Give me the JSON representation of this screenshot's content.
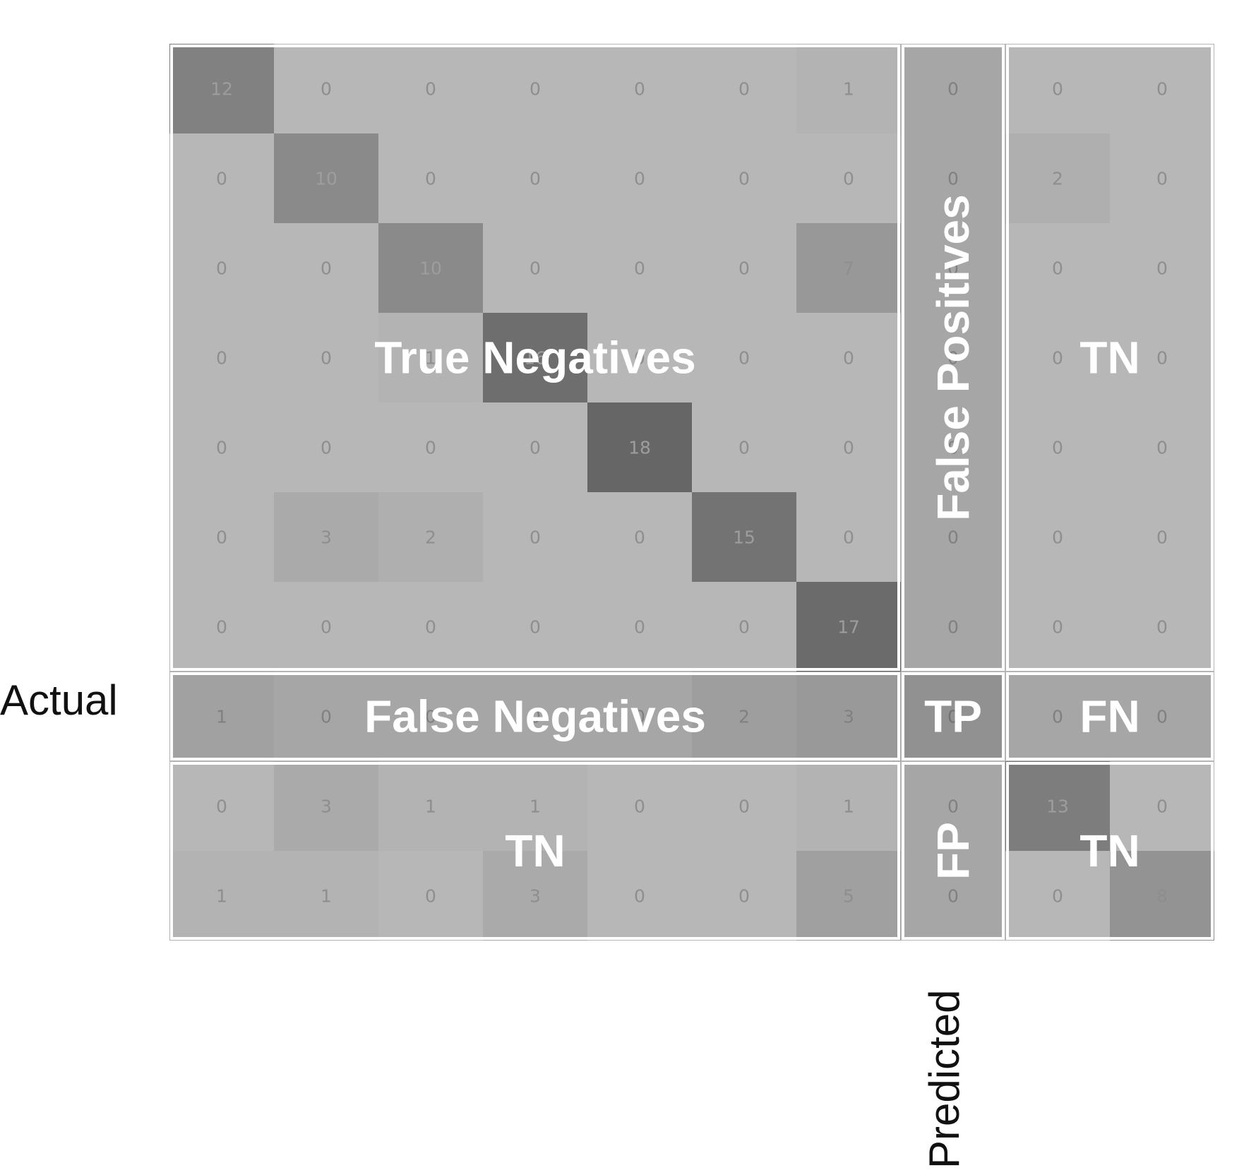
{
  "chart_data": {
    "type": "heatmap",
    "title": "",
    "xlabel": "Predicted",
    "ylabel": "Actual",
    "rows": 10,
    "cols": 10,
    "matrix": [
      [
        12,
        0,
        0,
        0,
        0,
        0,
        1,
        0,
        0,
        0
      ],
      [
        0,
        10,
        0,
        0,
        0,
        0,
        0,
        0,
        2,
        0
      ],
      [
        0,
        0,
        10,
        0,
        0,
        0,
        7,
        0,
        0,
        0
      ],
      [
        0,
        0,
        1,
        16,
        0,
        0,
        0,
        0,
        0,
        0
      ],
      [
        0,
        0,
        0,
        0,
        18,
        0,
        0,
        0,
        0,
        0
      ],
      [
        0,
        3,
        2,
        0,
        0,
        15,
        0,
        0,
        0,
        0
      ],
      [
        0,
        0,
        0,
        0,
        0,
        0,
        17,
        0,
        0,
        0
      ],
      [
        1,
        0,
        0,
        0,
        0,
        2,
        3,
        0,
        0,
        0
      ],
      [
        0,
        3,
        1,
        1,
        0,
        0,
        1,
        0,
        13,
        0
      ],
      [
        1,
        1,
        0,
        3,
        0,
        0,
        5,
        0,
        0,
        8
      ]
    ],
    "highlight_class_index": 7,
    "regions": [
      {
        "label": "True Negatives",
        "rows": [
          0,
          6
        ],
        "cols": [
          0,
          6
        ],
        "orientation": "horizontal"
      },
      {
        "label": "False Positives",
        "rows": [
          0,
          6
        ],
        "cols": [
          7,
          7
        ],
        "orientation": "vertical"
      },
      {
        "label": "TN",
        "rows": [
          0,
          6
        ],
        "cols": [
          8,
          9
        ],
        "orientation": "horizontal"
      },
      {
        "label": "False Negatives",
        "rows": [
          7,
          7
        ],
        "cols": [
          0,
          6
        ],
        "orientation": "horizontal"
      },
      {
        "label": "TP",
        "rows": [
          7,
          7
        ],
        "cols": [
          7,
          7
        ],
        "orientation": "horizontal"
      },
      {
        "label": "FN",
        "rows": [
          7,
          7
        ],
        "cols": [
          8,
          9
        ],
        "orientation": "horizontal"
      },
      {
        "label": "TN",
        "rows": [
          8,
          9
        ],
        "cols": [
          0,
          6
        ],
        "orientation": "horizontal"
      },
      {
        "label": "FP",
        "rows": [
          8,
          9
        ],
        "cols": [
          7,
          7
        ],
        "orientation": "vertical"
      },
      {
        "label": "TN",
        "rows": [
          8,
          9
        ],
        "cols": [
          8,
          9
        ],
        "orientation": "horizontal"
      }
    ],
    "grid": false,
    "legend": false
  }
}
